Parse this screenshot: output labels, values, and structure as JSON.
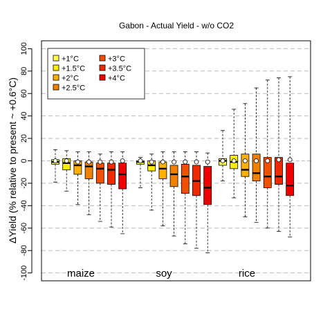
{
  "chart_data": {
    "type": "box",
    "title": "Gabon - Actual Yield - w/o CO2",
    "ylabel": "ΔYield (% relative to present ~ +0.6°C)",
    "ylim": [
      -107,
      107
    ],
    "yticks": [
      -100,
      -80,
      -60,
      -40,
      -20,
      0,
      20,
      40,
      60,
      80,
      100
    ],
    "grid": true,
    "legend_position": "top-left",
    "groups": [
      "maize",
      "soy",
      "rice"
    ],
    "series": [
      {
        "name": "+1°C",
        "color": "#ffff4d"
      },
      {
        "name": "+1.5°C",
        "color": "#ffee00"
      },
      {
        "name": "+2°C",
        "color": "#ffb000"
      },
      {
        "name": "+2.5°C",
        "color": "#f08000"
      },
      {
        "name": "+3°C",
        "color": "#f05000"
      },
      {
        "name": "+3.5°C",
        "color": "#f02a00"
      },
      {
        "name": "+4°C",
        "color": "#ee0000"
      }
    ],
    "boxes": {
      "maize": [
        {
          "min": -19,
          "q1": -3,
          "median": -1,
          "q3": 1,
          "max": 10,
          "mean": 0
        },
        {
          "min": -27,
          "q1": -8,
          "median": -2,
          "q3": 2,
          "max": 9,
          "mean": 0
        },
        {
          "min": -39,
          "q1": -12,
          "median": -4,
          "q3": 0,
          "max": 8,
          "mean": -1
        },
        {
          "min": -48,
          "q1": -16,
          "median": -5,
          "q3": -1,
          "max": 8,
          "mean": -1
        },
        {
          "min": -54,
          "q1": -20,
          "median": -7,
          "q3": -2,
          "max": 6,
          "mean": -1
        },
        {
          "min": -59,
          "q1": -21,
          "median": -8,
          "q3": -2,
          "max": 8,
          "mean": -1
        },
        {
          "min": -65,
          "q1": -25,
          "median": -12,
          "q3": -2,
          "max": 8,
          "mean": 0
        }
      ],
      "soy": [
        {
          "min": -24,
          "q1": -3,
          "median": -1,
          "q3": 0,
          "max": 3,
          "mean": 0
        },
        {
          "min": -44,
          "q1": -9,
          "median": -4,
          "q3": 0,
          "max": 6,
          "mean": -1
        },
        {
          "min": -58,
          "q1": -16,
          "median": -7,
          "q3": -1,
          "max": 8,
          "mean": -1
        },
        {
          "min": -67,
          "q1": -23,
          "median": -12,
          "q3": -4,
          "max": 8,
          "mean": -1
        },
        {
          "min": -74,
          "q1": -29,
          "median": -14,
          "q3": -3,
          "max": 8,
          "mean": -1
        },
        {
          "min": -78,
          "q1": -31,
          "median": -18,
          "q3": -4,
          "max": 8,
          "mean": -1
        },
        {
          "min": -82,
          "q1": -39,
          "median": -24,
          "q3": -5,
          "max": 7,
          "mean": -1
        }
      ],
      "rice": [
        {
          "min": -18,
          "q1": -4,
          "median": 0,
          "q3": 2,
          "max": 27,
          "mean": 0
        },
        {
          "min": -33,
          "q1": -7,
          "median": -1,
          "q3": 5,
          "max": 46,
          "mean": 0
        },
        {
          "min": -50,
          "q1": -14,
          "median": -8,
          "q3": 6,
          "max": 51,
          "mean": 0
        },
        {
          "min": -55,
          "q1": -18,
          "median": -11,
          "q3": 6,
          "max": 65,
          "mean": 0
        },
        {
          "min": -60,
          "q1": -24,
          "median": -14,
          "q3": 3,
          "max": 72,
          "mean": 0
        },
        {
          "min": -63,
          "q1": -21,
          "median": -14,
          "q3": 3,
          "max": 74,
          "mean": 1
        },
        {
          "min": -68,
          "q1": -31,
          "median": -22,
          "q3": -2,
          "max": 75,
          "mean": 1
        }
      ]
    }
  }
}
